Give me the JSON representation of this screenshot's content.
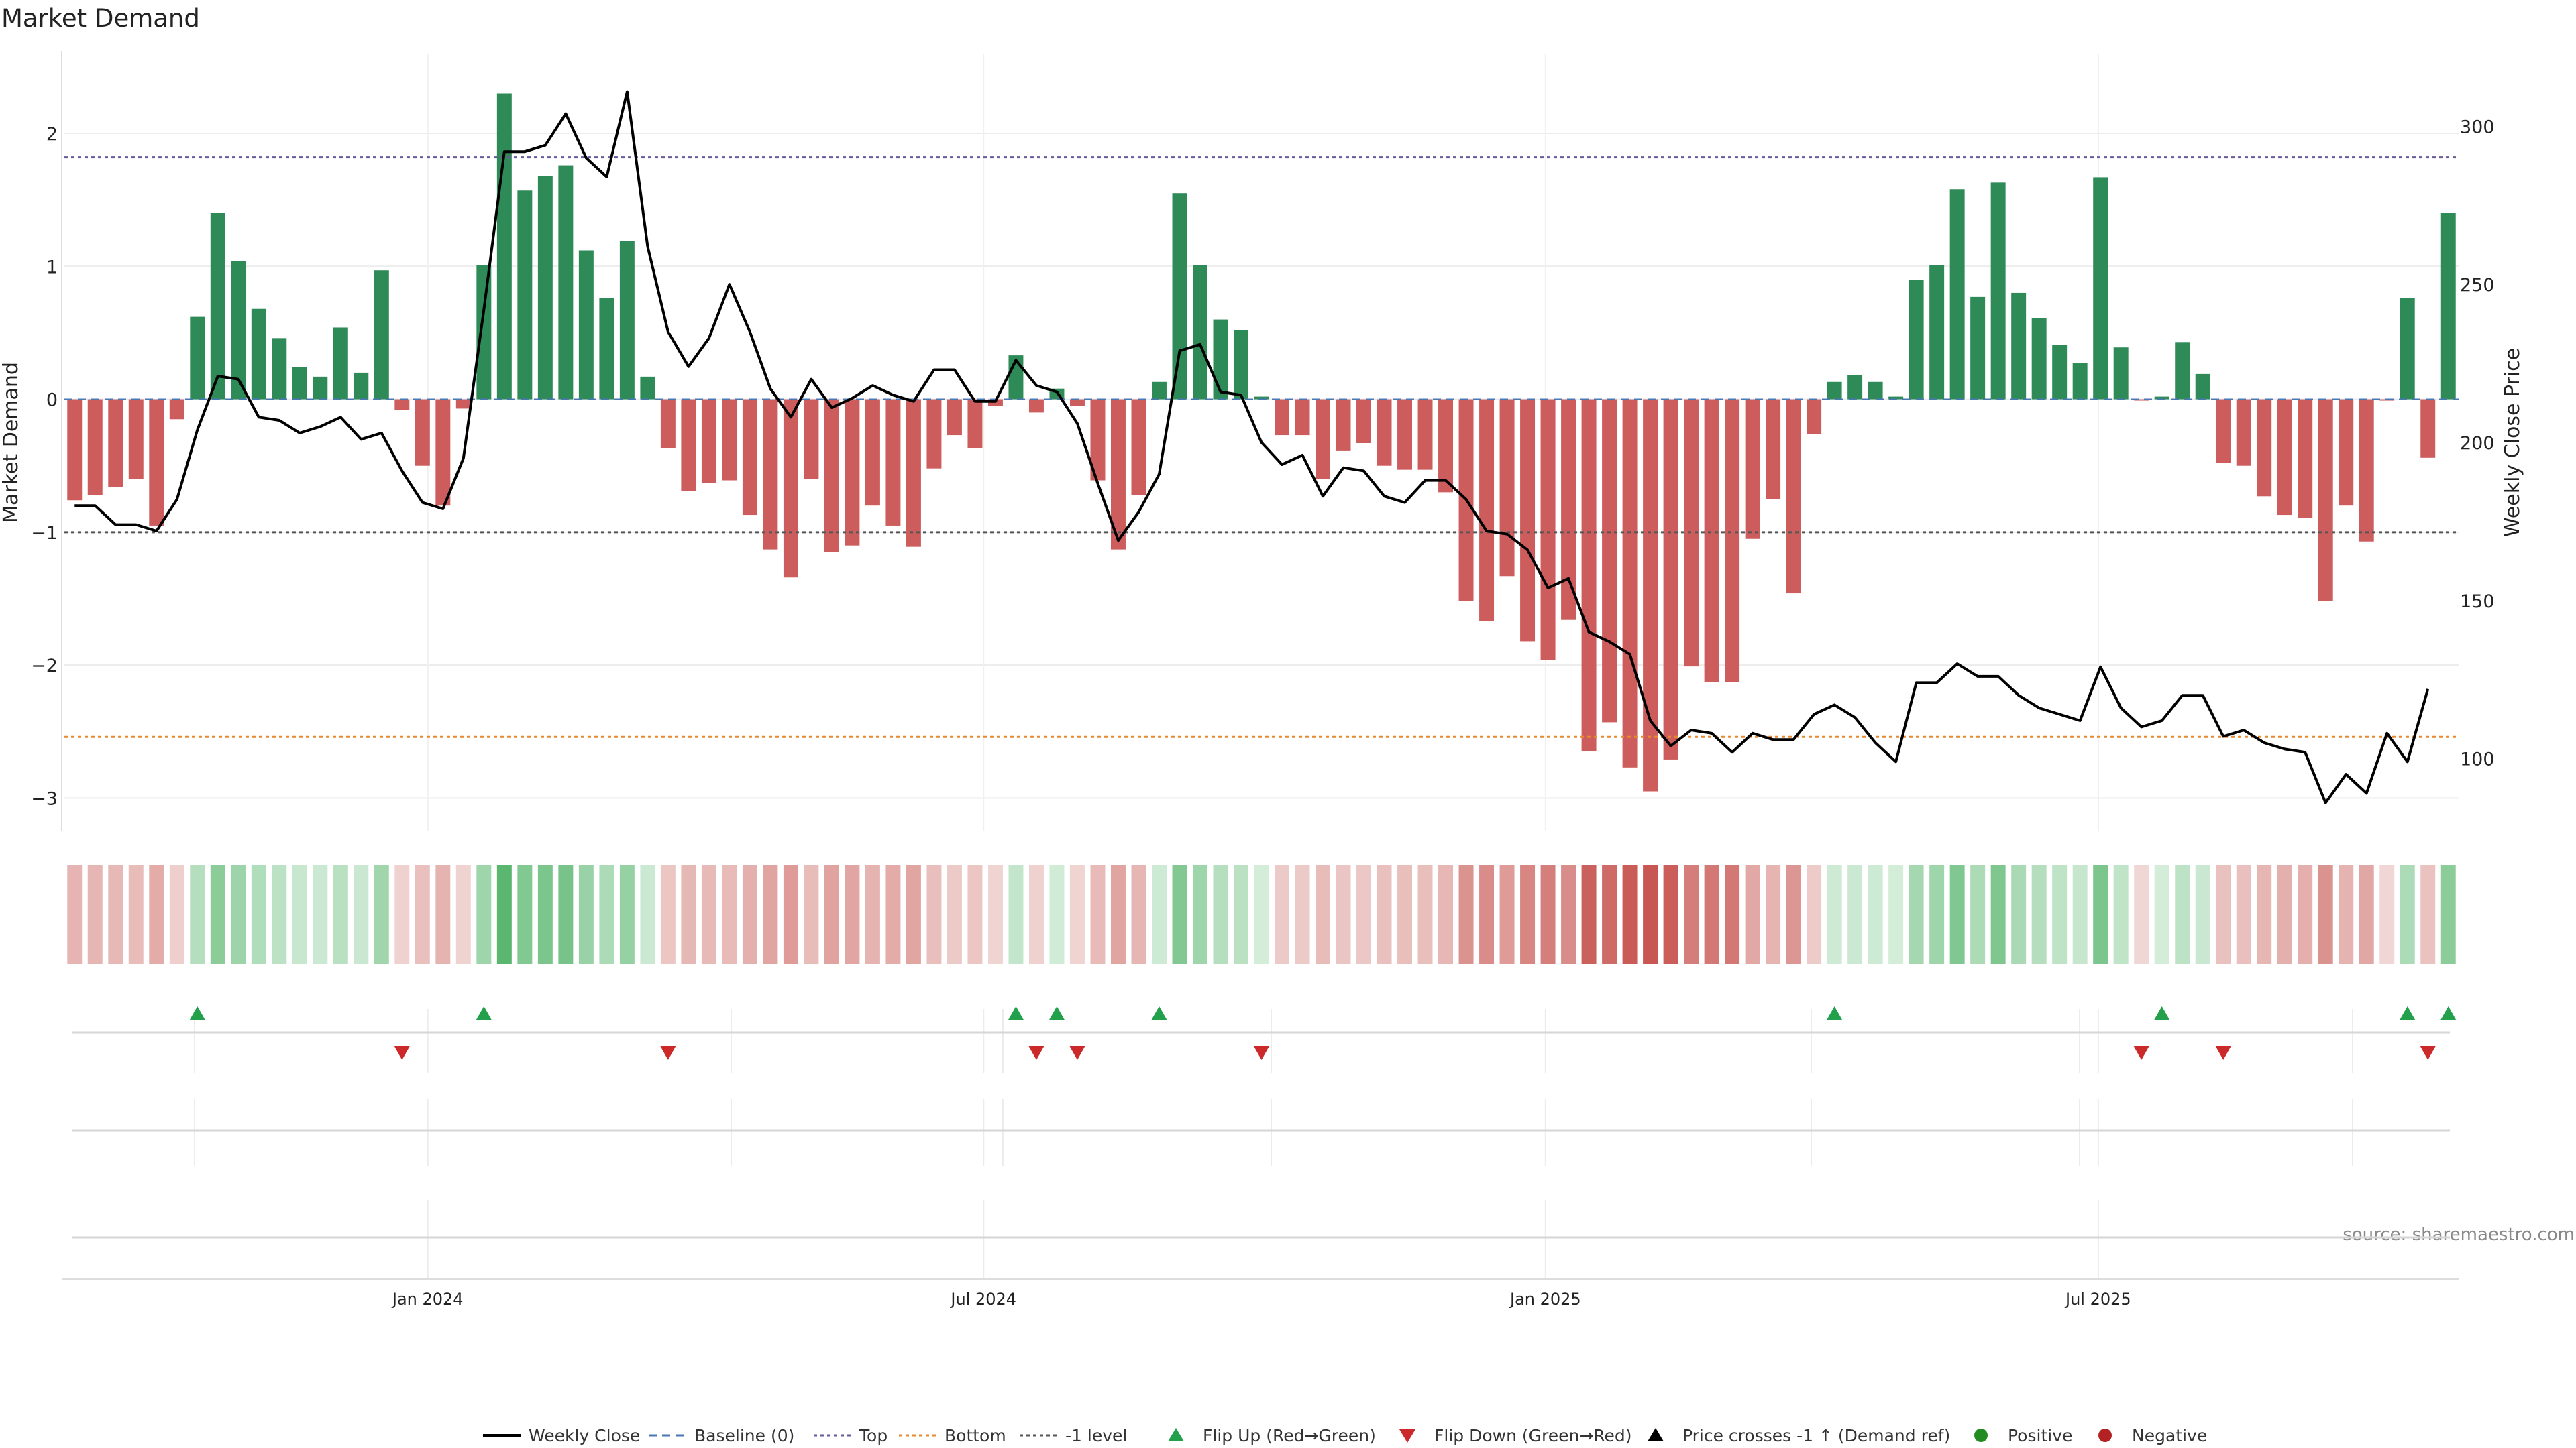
{
  "chart_data": {
    "type": "bar",
    "title": "Market Demand",
    "ylabel": "Market Demand",
    "y2label": "Weekly Close Price",
    "ylim": [
      -3.25,
      2.6
    ],
    "y2lim": [
      77,
      323
    ],
    "yticks": [
      -3,
      -2,
      -1,
      0,
      1,
      2
    ],
    "y2ticks": [
      100,
      150,
      200,
      250,
      300
    ],
    "ytick_labels": [
      "−3",
      "−2",
      "−1",
      "0",
      "1",
      "2"
    ],
    "y2tick_labels": [
      "100",
      "150",
      "200",
      "250",
      "300"
    ],
    "top_level": 1.82,
    "bottom_level": -2.54,
    "minus1_level": -1,
    "x_start": "2023-09-04",
    "x_end": "2025-10-27",
    "date_ticks": [
      {
        "label": "Jan 2024",
        "date": "2024-01-01"
      },
      {
        "label": "Jul 2024",
        "date": "2024-07-01"
      },
      {
        "label": "Jan 2025",
        "date": "2025-01-01"
      },
      {
        "label": "Jul 2025",
        "date": "2025-07-01"
      }
    ],
    "demand": [
      -0.76,
      -0.72,
      -0.66,
      -0.6,
      -0.95,
      -0.15,
      0.62,
      1.4,
      1.04,
      0.68,
      0.46,
      0.24,
      0.17,
      0.54,
      0.2,
      0.97,
      -0.08,
      -0.5,
      -0.8,
      -0.07,
      1.01,
      2.3,
      1.57,
      1.68,
      1.76,
      1.12,
      0.76,
      1.19,
      0.17,
      -0.37,
      -0.69,
      -0.63,
      -0.61,
      -0.87,
      -1.13,
      -1.34,
      -0.6,
      -1.15,
      -1.1,
      -0.8,
      -0.95,
      -1.11,
      -0.52,
      -0.27,
      -0.37,
      -0.05,
      0.33,
      -0.1,
      0.08,
      -0.05,
      -0.61,
      -1.13,
      -0.72,
      0.13,
      1.55,
      1.01,
      0.6,
      0.52,
      0.02,
      -0.27,
      -0.27,
      -0.6,
      -0.39,
      -0.33,
      -0.5,
      -0.53,
      -0.53,
      -0.7,
      -1.52,
      -1.67,
      -1.33,
      -1.82,
      -1.96,
      -1.66,
      -2.65,
      -2.43,
      -2.77,
      -2.95,
      -2.71,
      -2.01,
      -2.13,
      -2.13,
      -1.05,
      -0.75,
      -1.46,
      -0.26,
      0.13,
      0.18,
      0.13,
      0.02,
      0.9,
      1.01,
      1.58,
      0.77,
      1.63,
      0.8,
      0.61,
      0.41,
      0.27,
      1.67,
      0.39,
      -0.01,
      0.02,
      0.43,
      0.19,
      -0.48,
      -0.5,
      -0.73,
      -0.87,
      -0.89,
      -1.52,
      -0.8,
      -1.07,
      -0.01,
      0.76,
      -0.44,
      1.4
    ],
    "price": [
      180,
      180,
      174,
      174,
      172,
      182,
      204,
      221,
      220,
      208,
      207,
      203,
      205,
      208,
      201,
      203,
      191,
      181,
      179,
      195,
      242,
      292,
      292,
      294,
      304,
      290,
      284,
      311,
      262,
      235,
      224,
      233,
      250,
      235,
      217,
      208,
      220,
      211,
      214,
      218,
      215,
      213,
      223,
      223,
      213,
      213,
      226,
      218,
      216,
      206,
      187,
      169,
      178,
      190,
      229,
      231,
      216,
      215,
      200,
      193,
      196,
      183,
      192,
      191,
      183,
      181,
      188,
      188,
      182,
      172,
      171,
      166,
      154,
      157,
      140,
      137,
      133,
      112,
      104,
      109,
      108,
      102,
      108,
      106,
      106,
      114,
      117,
      113,
      105,
      99,
      124,
      124,
      130,
      126,
      126,
      120,
      116,
      114,
      112,
      129,
      116,
      110,
      112,
      120,
      120,
      107,
      109,
      105,
      103,
      102,
      86,
      95,
      89,
      108,
      99,
      122
    ],
    "status_strip": [
      -0.76,
      -0.72,
      -0.66,
      -0.6,
      -0.95,
      -0.15,
      0.62,
      1.4,
      1.04,
      0.68,
      0.46,
      0.24,
      0.17,
      0.54,
      0.2,
      0.97,
      -0.08,
      -0.5,
      -0.8,
      -0.07,
      1.01,
      2.3,
      1.57,
      1.68,
      1.76,
      1.12,
      0.76,
      1.19,
      0.17,
      -0.37,
      -0.69,
      -0.63,
      -0.61,
      -0.87,
      -1.13,
      -1.34,
      -0.6,
      -1.15,
      -1.1,
      -0.8,
      -0.95,
      -1.11,
      -0.52,
      -0.27,
      -0.37,
      -0.05,
      0.33,
      -0.1,
      0.08,
      -0.05,
      -0.61,
      -1.13,
      -0.72,
      0.13,
      1.55,
      1.01,
      0.6,
      0.52,
      0.02,
      -0.27,
      -0.27,
      -0.6,
      -0.39,
      -0.33,
      -0.5,
      -0.53,
      -0.53,
      -0.7,
      -1.52,
      -1.67,
      -1.33,
      -1.82,
      -1.96,
      -1.66,
      -2.65,
      -2.43,
      -2.77,
      -2.95,
      -2.71,
      -2.01,
      -2.13,
      -2.13,
      -1.05,
      -0.75,
      -1.46,
      -0.26,
      0.13,
      0.18,
      0.13,
      0.02,
      0.9,
      1.01,
      1.58,
      0.77,
      1.63,
      0.8,
      0.61,
      0.41,
      0.27,
      1.67,
      0.39,
      -0.01,
      0.02,
      0.43,
      0.19,
      -0.48,
      -0.5,
      -0.73,
      -0.87,
      -0.89,
      -1.52,
      -0.8,
      -1.07,
      -0.01,
      0.76,
      -0.44,
      1.4
    ],
    "flip_up_weeks": [
      6,
      20,
      46,
      48,
      53,
      86,
      102,
      114,
      116
    ],
    "flip_down_weeks": [
      16,
      29,
      47,
      49,
      58,
      101,
      105,
      115
    ],
    "colors": {
      "positive": "#2e8b57",
      "negative": "#cd5c5c",
      "price": "#000000",
      "top": "#6a5a9a",
      "bottom": "#e8892e",
      "minus1": "#555555",
      "flip_up": "#22a04b",
      "flip_down": "#cc2a2a",
      "positive_dot": "#228b22",
      "negative_dot": "#b22222"
    },
    "legend_placement": "bottom-center",
    "legend": [
      {
        "key": "weekly_close",
        "label": "Weekly Close"
      },
      {
        "key": "baseline",
        "label": "Baseline (0)"
      },
      {
        "key": "top",
        "label": "Top"
      },
      {
        "key": "bottom",
        "label": "Bottom"
      },
      {
        "key": "minus1",
        "label": "-1 level"
      },
      {
        "key": "flip_up",
        "label": "Flip Up (Red→Green)"
      },
      {
        "key": "flip_down",
        "label": "Flip Down (Green→Red)"
      },
      {
        "key": "price_cross",
        "label": "Price crosses -1 ↑ (Demand ref)"
      },
      {
        "key": "positive",
        "label": "Positive"
      },
      {
        "key": "negative",
        "label": "Negative"
      }
    ],
    "source": "source: sharemaestro.com"
  }
}
